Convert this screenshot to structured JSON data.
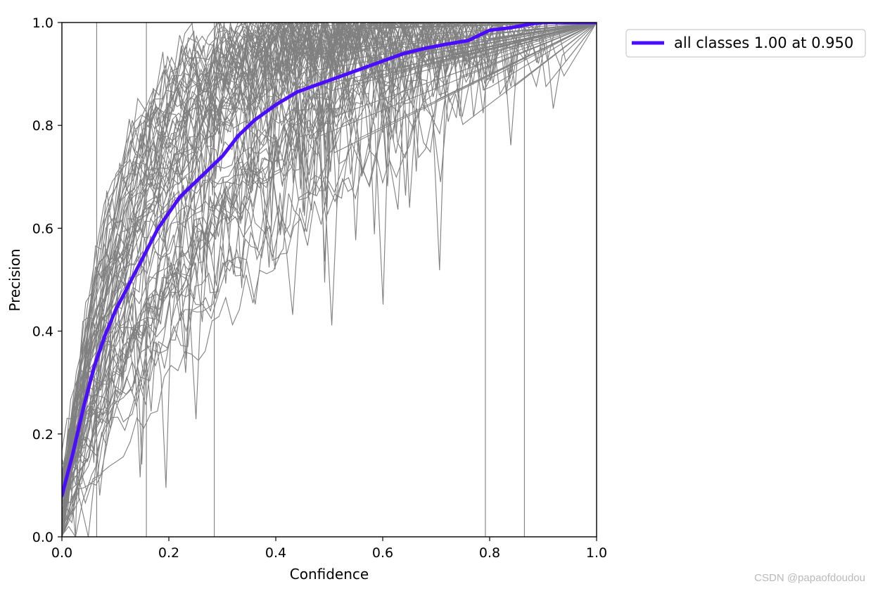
{
  "chart_data": {
    "type": "line",
    "title": "",
    "xlabel": "Confidence",
    "ylabel": "Precision",
    "xlim": [
      0,
      1
    ],
    "ylim": [
      0,
      1
    ],
    "x_ticks": [
      "0.0",
      "0.2",
      "0.4",
      "0.6",
      "0.8",
      "1.0"
    ],
    "y_ticks": [
      "0.0",
      "0.2",
      "0.4",
      "0.6",
      "0.8",
      "1.0"
    ],
    "grid": false,
    "legend_position": "outside-top-right",
    "per_class_color": "#808080",
    "series": [
      {
        "name": "all classes 1.00 at 0.950",
        "color": "#4a0dff",
        "x": [
          0.0,
          0.02,
          0.04,
          0.06,
          0.08,
          0.1,
          0.12,
          0.14,
          0.16,
          0.18,
          0.2,
          0.22,
          0.24,
          0.26,
          0.28,
          0.3,
          0.33,
          0.36,
          0.4,
          0.44,
          0.48,
          0.52,
          0.56,
          0.6,
          0.64,
          0.68,
          0.72,
          0.76,
          0.8,
          0.84,
          0.88,
          0.9,
          0.92,
          0.95,
          1.0
        ],
        "y": [
          0.08,
          0.16,
          0.25,
          0.33,
          0.39,
          0.44,
          0.48,
          0.52,
          0.56,
          0.6,
          0.63,
          0.66,
          0.68,
          0.7,
          0.72,
          0.74,
          0.78,
          0.81,
          0.84,
          0.865,
          0.88,
          0.895,
          0.91,
          0.925,
          0.94,
          0.95,
          0.958,
          0.965,
          0.985,
          0.99,
          0.998,
          1.0,
          1.0,
          1.0,
          1.0
        ]
      }
    ]
  },
  "watermark": "CSDN @papaofdoudou"
}
